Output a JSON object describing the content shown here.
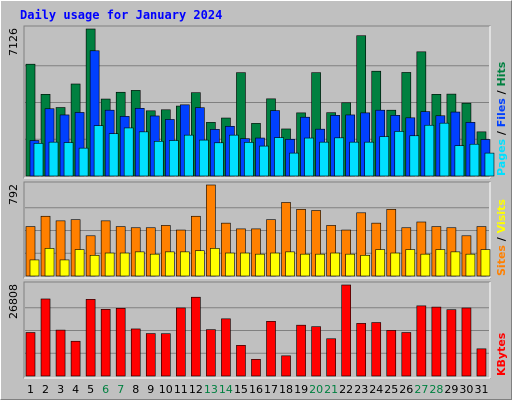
{
  "title": "Daily usage for January 2024",
  "colors": {
    "hits": "#008040",
    "files": "#0040ff",
    "pages": "#00e0ff",
    "visits": "#ffff00",
    "sites": "#ff8000",
    "kbytes": "#ff0000",
    "weekend_label": "#008040",
    "text": "#000000"
  },
  "chart_data": [
    {
      "type": "bar",
      "title": "Daily usage for January 2024",
      "categories": [
        "1",
        "2",
        "3",
        "4",
        "5",
        "6",
        "7",
        "8",
        "9",
        "10",
        "11",
        "12",
        "13",
        "14",
        "15",
        "16",
        "17",
        "18",
        "19",
        "20",
        "21",
        "22",
        "23",
        "24",
        "25",
        "26",
        "27",
        "28",
        "29",
        "30",
        "31"
      ],
      "weekend_days": [
        "6",
        "7",
        "13",
        "14",
        "20",
        "21",
        "27",
        "28"
      ],
      "max_label": "7126",
      "ylim": [
        0,
        7126
      ],
      "grid": true,
      "legend": "right vertical",
      "legend_labels": [
        "Pages",
        "Files",
        "Hits"
      ],
      "series": [
        {
          "name": "Hits",
          "color": "#008040",
          "values": [
            5420,
            3960,
            3320,
            4460,
            7126,
            3730,
            4060,
            4150,
            3160,
            3210,
            3390,
            4040,
            2600,
            2810,
            5010,
            2550,
            3740,
            2280,
            3060,
            5010,
            3070,
            3550,
            6800,
            5080,
            3190,
            5020,
            6020,
            3960,
            3970,
            3530,
            2140
          ]
        },
        {
          "name": "Files",
          "color": "#0040ff",
          "values": [
            1720,
            3260,
            2960,
            3080,
            6070,
            3190,
            2890,
            3280,
            2910,
            2740,
            3450,
            3310,
            2260,
            2410,
            1810,
            1840,
            3170,
            1780,
            2850,
            2270,
            2940,
            2960,
            3060,
            3190,
            2940,
            2820,
            3120,
            2920,
            3100,
            2600,
            1770
          ]
        },
        {
          "name": "Pages",
          "color": "#00e0ff",
          "values": [
            1580,
            1640,
            1620,
            1350,
            2440,
            2050,
            2330,
            2140,
            1680,
            1720,
            1980,
            1740,
            1610,
            1980,
            1630,
            1450,
            1860,
            1110,
            1840,
            1640,
            1850,
            1640,
            1640,
            1910,
            2160,
            1950,
            2460,
            2560,
            1470,
            1540,
            1110
          ]
        }
      ]
    },
    {
      "type": "bar",
      "categories": [
        "1",
        "2",
        "3",
        "4",
        "5",
        "6",
        "7",
        "8",
        "9",
        "10",
        "11",
        "12",
        "13",
        "14",
        "15",
        "16",
        "17",
        "18",
        "19",
        "20",
        "21",
        "22",
        "23",
        "24",
        "25",
        "26",
        "27",
        "28",
        "29",
        "30",
        "31"
      ],
      "max_label": "792",
      "ylim": [
        0,
        792
      ],
      "grid": true,
      "legend": "right vertical",
      "legend_labels": [
        "Sites",
        "Visits"
      ],
      "series": [
        {
          "name": "Sites",
          "color": "#ff8000",
          "values": [
            430,
            520,
            480,
            490,
            350,
            480,
            430,
            420,
            420,
            440,
            400,
            520,
            792,
            460,
            410,
            410,
            490,
            640,
            580,
            570,
            440,
            400,
            550,
            460,
            580,
            420,
            470,
            430,
            420,
            350,
            430
          ]
        },
        {
          "name": "Visits",
          "color": "#ffff00",
          "values": [
            140,
            240,
            140,
            230,
            180,
            200,
            200,
            210,
            190,
            210,
            210,
            220,
            240,
            200,
            200,
            190,
            200,
            210,
            190,
            190,
            200,
            190,
            180,
            230,
            200,
            230,
            190,
            230,
            210,
            190,
            230
          ]
        }
      ]
    },
    {
      "type": "bar",
      "categories": [
        "1",
        "2",
        "3",
        "4",
        "5",
        "6",
        "7",
        "8",
        "9",
        "10",
        "11",
        "12",
        "13",
        "14",
        "15",
        "16",
        "17",
        "18",
        "19",
        "20",
        "21",
        "22",
        "23",
        "24",
        "25",
        "26",
        "27",
        "28",
        "29",
        "30",
        "31"
      ],
      "max_label": "26808",
      "ylim": [
        0,
        26808
      ],
      "grid": true,
      "legend": "right vertical",
      "legend_labels": [
        "KBytes"
      ],
      "series": [
        {
          "name": "KBytes",
          "color": "#ff0000",
          "values": [
            12810,
            22690,
            13520,
            10240,
            22580,
            19640,
            19950,
            13860,
            12500,
            12460,
            20050,
            23210,
            13660,
            16840,
            9030,
            4910,
            16110,
            5940,
            14970,
            14530,
            10970,
            26808,
            15500,
            15750,
            13430,
            12810,
            20660,
            20300,
            19530,
            20040,
            8000
          ]
        }
      ]
    }
  ]
}
